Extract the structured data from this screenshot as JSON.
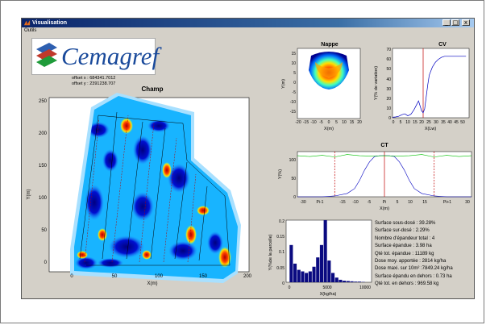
{
  "window": {
    "title": "Visualisation",
    "menu": [
      "Outils"
    ],
    "controls": {
      "minimize": "_",
      "maximize": "□",
      "close": "x"
    }
  },
  "logo": {
    "text": "Cemagref",
    "colors": [
      "#1f9b3a",
      "#c0392b",
      "#2e5fb0"
    ]
  },
  "offsets": {
    "x": "offset x : 684341.7012",
    "y": "offset y : 2391238.707"
  },
  "champ": {
    "title": "Champ",
    "xlabel": "X(m)",
    "ylabel": "Y(m)",
    "xticks": [
      "0",
      "50",
      "100",
      "150",
      "200"
    ],
    "yticks": [
      "0",
      "50",
      "100",
      "150",
      "200",
      "250"
    ]
  },
  "nappe": {
    "title": "Nappe",
    "xlabel": "X(m)",
    "ylabel": "Y(m)",
    "xticks": [
      "-20",
      "-15",
      "-10",
      "-5",
      "0",
      "5",
      "10",
      "15",
      "20"
    ],
    "yticks": [
      "15",
      "10",
      "5",
      "0",
      "-5",
      "-10",
      "-15"
    ]
  },
  "cv": {
    "title": "CV",
    "xlabel": "X(Lw)",
    "ylabel": "Y(% de variation)",
    "xticks": [
      "0",
      "5",
      "10",
      "15",
      "20",
      "25",
      "30",
      "35",
      "40",
      "45",
      "50"
    ],
    "yticks": [
      "70",
      "60",
      "50",
      "40",
      "30",
      "20",
      "10",
      "0"
    ]
  },
  "ct": {
    "title": "CT",
    "xlabel": "X(m)",
    "ylabel": "Y(%)",
    "xticks": [
      "-30",
      "Pi-1",
      "-15",
      "-10",
      "-5",
      "Pi",
      "5",
      "10",
      "15",
      "Pi+1",
      "30"
    ],
    "yticks": [
      "100",
      "50",
      "0"
    ]
  },
  "hist": {
    "xlabel": "X(kg/ha)",
    "ylabel": "Y(%de la parcelle)",
    "xticks": [
      "0",
      "5000",
      "10000"
    ],
    "yticks": [
      "0.2",
      "0.15",
      "0.1",
      "0.05",
      "0"
    ]
  },
  "stats": [
    "Surface sous-dosé : 39.28%",
    "Surface sur-dosé : 2.29%",
    "Nombre d'épandeur total : 4",
    "Surface épandue : 3.98 ha",
    "Qté tot. épandue : 11189 kg",
    "Dose moy. apportée : 2814 kg/ha",
    "Dose maxi. sur 10m² :7849.24 kg/ha",
    "Surface épandu en dehors : 0.73 ha",
    "Qté tot. en dehors : 969.58 kg"
  ],
  "chart_data": [
    {
      "type": "bar",
      "title": "",
      "xlabel": "X(kg/ha)",
      "ylabel": "Y(%de la parcelle)",
      "xlim": [
        0,
        10000
      ],
      "ylim": [
        0,
        0.2
      ],
      "x": [
        250,
        750,
        1250,
        1750,
        2250,
        2750,
        3250,
        3750,
        4250,
        4750,
        5250,
        5750,
        6250,
        6750,
        7250,
        7750,
        8250,
        8750,
        9250,
        9750
      ],
      "values": [
        0.12,
        0.06,
        0.04,
        0.035,
        0.03,
        0.035,
        0.05,
        0.08,
        0.12,
        0.2,
        0.07,
        0.03,
        0.015,
        0.008,
        0.005,
        0.004,
        0.003,
        0.002,
        0.002,
        0.001
      ]
    },
    {
      "type": "line",
      "title": "CV",
      "xlabel": "X(Lw)",
      "ylabel": "Y(% de variation)",
      "xlim": [
        0,
        50
      ],
      "ylim": [
        0,
        70
      ],
      "series": [
        {
          "x": [
            0,
            2,
            4,
            6,
            8,
            10,
            12,
            14,
            16,
            17,
            18,
            19,
            20,
            21,
            22,
            23,
            24,
            26,
            28,
            30,
            32,
            34,
            36,
            40,
            45,
            48
          ],
          "values": [
            0.5,
            0.8,
            1.5,
            3,
            4,
            2,
            3.5,
            8,
            14,
            17,
            12,
            7,
            5,
            9,
            21,
            33,
            43,
            51,
            56,
            59,
            61,
            62,
            62,
            62,
            62,
            62
          ]
        }
      ],
      "annotations": {
        "vertical_line_x": 20
      }
    },
    {
      "type": "line",
      "title": "CT",
      "xlabel": "X(m)",
      "ylabel": "Y(%)",
      "xlim": [
        -35,
        35
      ],
      "ylim": [
        0,
        110
      ],
      "series": [
        {
          "x": [
            -35,
            -30,
            -25,
            -20,
            -15,
            -12,
            -10,
            -8,
            -6,
            -4,
            -2,
            0,
            2,
            4,
            6,
            8,
            10,
            12,
            15,
            20,
            25,
            30,
            35
          ],
          "values": [
            0,
            0,
            0,
            2,
            8,
            20,
            40,
            65,
            85,
            98,
            100,
            100,
            100,
            98,
            85,
            65,
            40,
            20,
            8,
            2,
            0,
            0,
            0
          ]
        },
        {
          "x": [
            -35,
            -30,
            -25,
            -20,
            -15,
            -10,
            -5,
            0,
            5,
            10,
            15,
            20,
            25,
            30,
            35
          ],
          "values": [
            100,
            98,
            101,
            97,
            103,
            100,
            99,
            100,
            99,
            100,
            103,
            97,
            101,
            98,
            100
          ]
        }
      ],
      "annotations": {
        "vertical_lines_x": [
          -20,
          0,
          20
        ]
      }
    }
  ]
}
